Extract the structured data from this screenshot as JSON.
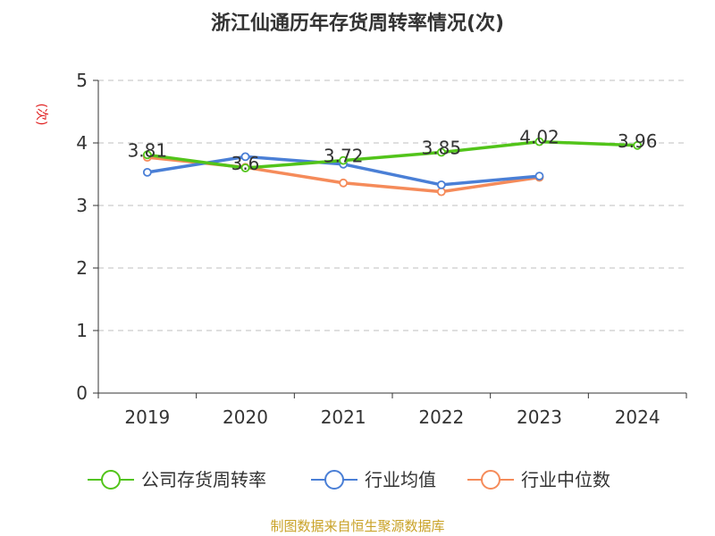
{
  "colors": {
    "company": "#52c41a",
    "industry_avg": "#4a7fd6",
    "industry_median": "#f58b5a",
    "axis": "#333333",
    "grid": "#cccccc",
    "ylabel": "#e02020",
    "source": "#c9a227"
  },
  "chart_data": {
    "type": "line",
    "title": "浙江仙通历年存货周转率情况(次)",
    "ylabel": "(次)",
    "xlabel": "",
    "categories": [
      "2019",
      "2020",
      "2021",
      "2022",
      "2023",
      "2024"
    ],
    "ylim": [
      0,
      5
    ],
    "yticks": [
      "0",
      "1",
      "2",
      "3",
      "4",
      "5"
    ],
    "grid": true,
    "legend_position": "bottom",
    "series": [
      {
        "name": "公司存货周转率",
        "values": [
          3.81,
          3.6,
          3.72,
          3.85,
          4.02,
          3.96
        ],
        "data_labels": [
          "3.81",
          "3.6",
          "3.72",
          "3.85",
          "4.02",
          "3.96"
        ]
      },
      {
        "name": "行业均值",
        "values": [
          3.53,
          3.78,
          3.66,
          3.33,
          3.47,
          null
        ]
      },
      {
        "name": "行业中位数",
        "values": [
          3.77,
          3.61,
          3.36,
          3.22,
          3.45,
          null
        ]
      }
    ]
  },
  "source": "制图数据来自恒生聚源数据库"
}
